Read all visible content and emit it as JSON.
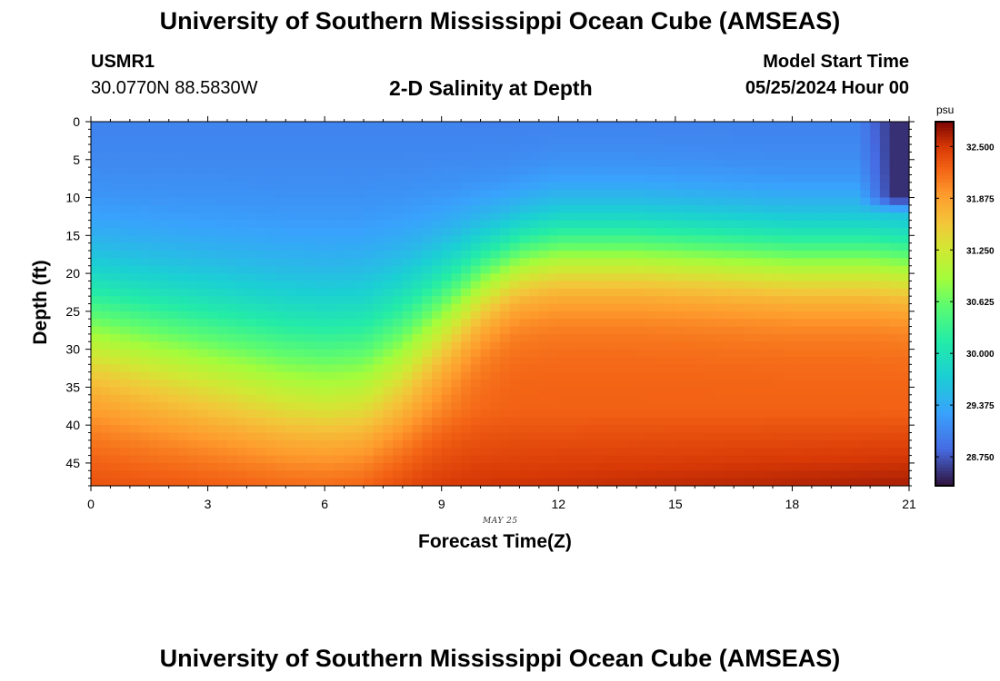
{
  "page": {
    "title": "University of Southern Mississippi Ocean Cube (AMSEAS)",
    "footer_title": "University of Southern Mississippi Ocean Cube (AMSEAS)",
    "station_id": "USMR1",
    "station_coords": "30.0770N  88.5830W",
    "plot_title": "2-D Salinity at Depth",
    "model_start_label": "Model Start Time",
    "model_start_value": "05/25/2024 Hour 00",
    "date_label": "MAY 25"
  },
  "chart_data": {
    "type": "heatmap",
    "title": "2-D Salinity at Depth",
    "xlabel": "Forecast Time(Z)",
    "ylabel": "Depth (ft)",
    "xlim": [
      0,
      21
    ],
    "ylim": [
      0,
      48
    ],
    "y_inverted": true,
    "x_ticks": [
      0,
      3,
      6,
      9,
      12,
      15,
      18,
      21
    ],
    "x_tick_labels": [
      "0",
      "3",
      "6",
      "9",
      "12",
      "15",
      "18",
      "21"
    ],
    "y_ticks": [
      0,
      5,
      10,
      15,
      20,
      25,
      30,
      35,
      40,
      45
    ],
    "y_tick_labels": [
      "0",
      "5",
      "10",
      "15",
      "20",
      "25",
      "30",
      "35",
      "40",
      "45"
    ],
    "colorbar": {
      "units": "psu",
      "min": 28.4,
      "max": 32.8,
      "ticks": [
        32.5,
        31.875,
        31.25,
        30.625,
        30.0,
        29.375,
        28.75
      ],
      "tick_labels": [
        "32.500",
        "31.875",
        "31.250",
        "30.625",
        "30.000",
        "29.375",
        "28.750"
      ]
    },
    "colors": {
      "low": "#30123b",
      "mid": "#a4fc3b",
      "high": "#7a0403"
    },
    "halocline_profile": {
      "hours": [
        0,
        3,
        5,
        6,
        7,
        8,
        9,
        10,
        11,
        12,
        14,
        16,
        18,
        20,
        21
      ],
      "center_depth_ft": [
        26,
        29,
        31,
        31.5,
        31,
        28,
        24,
        20,
        17.5,
        16.5,
        16.5,
        17,
        17.5,
        17.5,
        18
      ]
    },
    "surface_salinity_psu": 29.0,
    "bottom_salinity_psu": 32.6,
    "late_surface_fresh_patch": {
      "hours": [
        19.7,
        21
      ],
      "depth_ft": [
        0,
        12
      ],
      "salinity_psu": 28.55
    }
  }
}
